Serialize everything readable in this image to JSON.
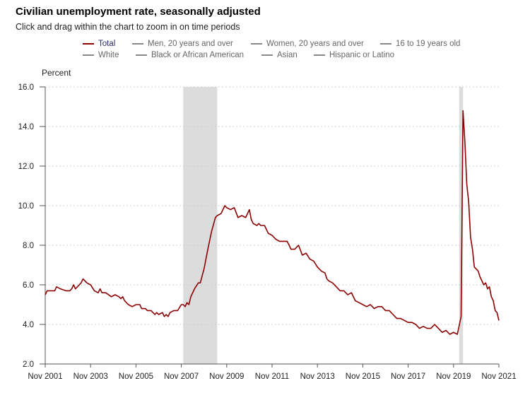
{
  "header": {
    "title": "Civilian unemployment rate, seasonally adjusted",
    "subtitle": "Click and drag within the chart to zoom in on time periods"
  },
  "colors": {
    "line": "#8b0000",
    "recession": "#dcdcdc",
    "grid": "#cccccc",
    "axis": "#555555"
  },
  "chart_data": {
    "type": "line",
    "title": "Civilian unemployment rate, seasonally adjusted",
    "ylabel": "Percent",
    "xlabel": "",
    "ylim": [
      2.0,
      16.0
    ],
    "yticks": [
      "16.0",
      "14.0",
      "12.0",
      "10.0",
      "8.0",
      "6.0",
      "4.0",
      "2.0"
    ],
    "xlim": [
      2001.833,
      2021.833
    ],
    "xticks": [
      "Nov 2001",
      "Nov 2003",
      "Nov 2005",
      "Nov 2007",
      "Nov 2009",
      "Nov 2011",
      "Nov 2013",
      "Nov 2015",
      "Nov 2017",
      "Nov 2019",
      "Nov 2021"
    ],
    "grid": true,
    "legend": {
      "placement": "top",
      "entries": [
        {
          "label": "Total",
          "active": true
        },
        {
          "label": "Men, 20 years and over",
          "active": false
        },
        {
          "label": "Women, 20 years and over",
          "active": false
        },
        {
          "label": "16 to 19 years old",
          "active": false
        },
        {
          "label": "White",
          "active": false
        },
        {
          "label": "Black or African American",
          "active": false
        },
        {
          "label": "Asian",
          "active": false
        },
        {
          "label": "Hispanic or Latino",
          "active": false
        }
      ]
    },
    "recessions": [
      {
        "start": 2007.917,
        "end": 2009.417
      },
      {
        "start": 2020.083,
        "end": 2020.25
      }
    ],
    "series": [
      {
        "name": "Total",
        "points": [
          [
            2001.833,
            5.5
          ],
          [
            2001.917,
            5.7
          ],
          [
            2002.0,
            5.7
          ],
          [
            2002.25,
            5.7
          ],
          [
            2002.33,
            5.9
          ],
          [
            2002.5,
            5.8
          ],
          [
            2002.75,
            5.7
          ],
          [
            2002.917,
            5.7
          ],
          [
            2003.0,
            5.8
          ],
          [
            2003.083,
            6.0
          ],
          [
            2003.167,
            5.8
          ],
          [
            2003.333,
            6.0
          ],
          [
            2003.417,
            6.1
          ],
          [
            2003.5,
            6.3
          ],
          [
            2003.667,
            6.1
          ],
          [
            2003.833,
            6.0
          ],
          [
            2004.0,
            5.7
          ],
          [
            2004.167,
            5.6
          ],
          [
            2004.25,
            5.8
          ],
          [
            2004.333,
            5.6
          ],
          [
            2004.5,
            5.6
          ],
          [
            2004.75,
            5.4
          ],
          [
            2004.917,
            5.5
          ],
          [
            2005.083,
            5.4
          ],
          [
            2005.167,
            5.3
          ],
          [
            2005.25,
            5.4
          ],
          [
            2005.333,
            5.2
          ],
          [
            2005.5,
            5.0
          ],
          [
            2005.667,
            4.9
          ],
          [
            2005.833,
            5.0
          ],
          [
            2006.0,
            5.0
          ],
          [
            2006.083,
            4.8
          ],
          [
            2006.25,
            4.8
          ],
          [
            2006.333,
            4.7
          ],
          [
            2006.5,
            4.7
          ],
          [
            2006.667,
            4.5
          ],
          [
            2006.75,
            4.6
          ],
          [
            2006.833,
            4.5
          ],
          [
            2007.0,
            4.6
          ],
          [
            2007.083,
            4.4
          ],
          [
            2007.167,
            4.5
          ],
          [
            2007.25,
            4.4
          ],
          [
            2007.333,
            4.6
          ],
          [
            2007.5,
            4.7
          ],
          [
            2007.667,
            4.7
          ],
          [
            2007.833,
            5.0
          ],
          [
            2007.917,
            5.0
          ],
          [
            2008.0,
            4.9
          ],
          [
            2008.083,
            5.1
          ],
          [
            2008.167,
            5.0
          ],
          [
            2008.25,
            5.4
          ],
          [
            2008.417,
            5.8
          ],
          [
            2008.583,
            6.1
          ],
          [
            2008.667,
            6.1
          ],
          [
            2008.833,
            6.8
          ],
          [
            2009.0,
            7.8
          ],
          [
            2009.167,
            8.7
          ],
          [
            2009.333,
            9.4
          ],
          [
            2009.417,
            9.5
          ],
          [
            2009.583,
            9.6
          ],
          [
            2009.75,
            10.0
          ],
          [
            2009.833,
            9.9
          ],
          [
            2010.0,
            9.8
          ],
          [
            2010.167,
            9.9
          ],
          [
            2010.333,
            9.4
          ],
          [
            2010.5,
            9.5
          ],
          [
            2010.667,
            9.4
          ],
          [
            2010.833,
            9.8
          ],
          [
            2010.917,
            9.3
          ],
          [
            2011.0,
            9.1
          ],
          [
            2011.167,
            9.0
          ],
          [
            2011.25,
            9.1
          ],
          [
            2011.333,
            9.0
          ],
          [
            2011.5,
            9.0
          ],
          [
            2011.667,
            8.6
          ],
          [
            2011.833,
            8.5
          ],
          [
            2012.0,
            8.3
          ],
          [
            2012.167,
            8.2
          ],
          [
            2012.5,
            8.2
          ],
          [
            2012.667,
            7.8
          ],
          [
            2012.833,
            7.8
          ],
          [
            2013.0,
            8.0
          ],
          [
            2013.167,
            7.5
          ],
          [
            2013.333,
            7.6
          ],
          [
            2013.5,
            7.3
          ],
          [
            2013.667,
            7.2
          ],
          [
            2013.833,
            6.9
          ],
          [
            2014.0,
            6.7
          ],
          [
            2014.167,
            6.6
          ],
          [
            2014.25,
            6.3
          ],
          [
            2014.333,
            6.2
          ],
          [
            2014.5,
            6.1
          ],
          [
            2014.667,
            5.9
          ],
          [
            2014.833,
            5.7
          ],
          [
            2015.0,
            5.7
          ],
          [
            2015.167,
            5.5
          ],
          [
            2015.333,
            5.6
          ],
          [
            2015.5,
            5.2
          ],
          [
            2015.667,
            5.1
          ],
          [
            2015.833,
            5.0
          ],
          [
            2016.0,
            4.9
          ],
          [
            2016.167,
            5.0
          ],
          [
            2016.333,
            4.8
          ],
          [
            2016.5,
            4.9
          ],
          [
            2016.667,
            4.9
          ],
          [
            2016.833,
            4.7
          ],
          [
            2017.0,
            4.7
          ],
          [
            2017.167,
            4.5
          ],
          [
            2017.333,
            4.3
          ],
          [
            2017.5,
            4.3
          ],
          [
            2017.667,
            4.2
          ],
          [
            2017.833,
            4.1
          ],
          [
            2018.0,
            4.1
          ],
          [
            2018.167,
            4.0
          ],
          [
            2018.333,
            3.8
          ],
          [
            2018.5,
            3.9
          ],
          [
            2018.667,
            3.8
          ],
          [
            2018.833,
            3.8
          ],
          [
            2019.0,
            4.0
          ],
          [
            2019.167,
            3.8
          ],
          [
            2019.333,
            3.6
          ],
          [
            2019.5,
            3.7
          ],
          [
            2019.667,
            3.5
          ],
          [
            2019.833,
            3.6
          ],
          [
            2020.0,
            3.5
          ],
          [
            2020.167,
            4.4
          ],
          [
            2020.25,
            14.8
          ],
          [
            2020.333,
            13.2
          ],
          [
            2020.417,
            11.1
          ],
          [
            2020.5,
            10.2
          ],
          [
            2020.583,
            8.4
          ],
          [
            2020.667,
            7.8
          ],
          [
            2020.75,
            6.9
          ],
          [
            2020.917,
            6.7
          ],
          [
            2021.0,
            6.4
          ],
          [
            2021.167,
            6.0
          ],
          [
            2021.25,
            6.1
          ],
          [
            2021.333,
            5.8
          ],
          [
            2021.417,
            5.9
          ],
          [
            2021.5,
            5.4
          ],
          [
            2021.583,
            5.2
          ],
          [
            2021.667,
            4.7
          ],
          [
            2021.75,
            4.6
          ],
          [
            2021.833,
            4.2
          ]
        ]
      }
    ]
  }
}
